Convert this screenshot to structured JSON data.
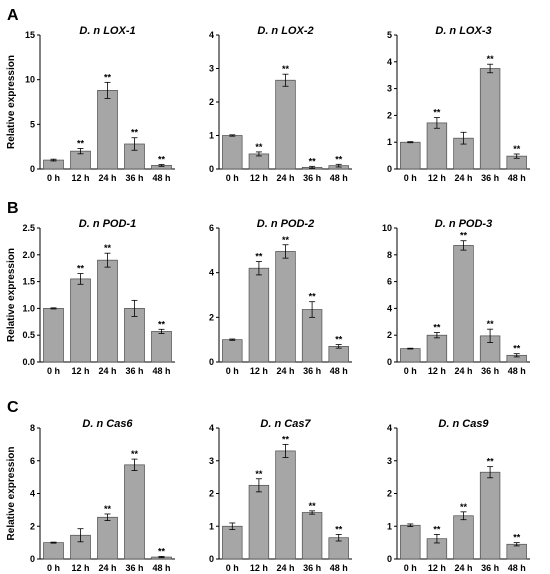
{
  "panels": [
    {
      "letter": "A"
    },
    {
      "letter": "B"
    },
    {
      "letter": "C"
    }
  ],
  "chart_data": [
    {
      "type": "bar",
      "title": "D. n LOX-1",
      "ylabel": "Relative expression",
      "categories": [
        "0 h",
        "12 h",
        "24 h",
        "36 h",
        "48 h"
      ],
      "values": [
        1.0,
        2.0,
        8.8,
        2.8,
        0.4
      ],
      "errors": [
        0.1,
        0.3,
        0.9,
        0.7,
        0.1
      ],
      "significance": [
        "",
        "**",
        "**",
        "**",
        "**"
      ],
      "ylim": [
        0,
        15
      ],
      "yticks": [
        0,
        5,
        10,
        15
      ]
    },
    {
      "type": "bar",
      "title": "D. n LOX-2",
      "ylabel": "",
      "categories": [
        "0 h",
        "12 h",
        "24 h",
        "36 h",
        "48 h"
      ],
      "values": [
        1.0,
        0.45,
        2.65,
        0.05,
        0.1
      ],
      "errors": [
        0.02,
        0.06,
        0.18,
        0.03,
        0.04
      ],
      "significance": [
        "",
        "**",
        "**",
        "**",
        "**"
      ],
      "ylim": [
        0,
        4
      ],
      "yticks": [
        0,
        1,
        2,
        3,
        4
      ]
    },
    {
      "type": "bar",
      "title": "D. n LOX-3",
      "ylabel": "",
      "categories": [
        "0 h",
        "12 h",
        "24 h",
        "36 h",
        "48 h"
      ],
      "values": [
        1.0,
        1.72,
        1.15,
        3.75,
        0.48
      ],
      "errors": [
        0.02,
        0.2,
        0.22,
        0.16,
        0.08
      ],
      "significance": [
        "",
        "**",
        "",
        "**",
        "**"
      ],
      "ylim": [
        0,
        5
      ],
      "yticks": [
        0,
        1,
        2,
        3,
        4,
        5
      ]
    },
    {
      "type": "bar",
      "title": "D. n POD-1",
      "ylabel": "Relative expression",
      "categories": [
        "0 h",
        "12 h",
        "24 h",
        "36 h",
        "48 h"
      ],
      "values": [
        1.0,
        1.55,
        1.9,
        1.0,
        0.57
      ],
      "errors": [
        0.01,
        0.1,
        0.13,
        0.15,
        0.04
      ],
      "significance": [
        "",
        "**",
        "**",
        "",
        "**"
      ],
      "ylim": [
        0,
        2.5
      ],
      "yticks": [
        0,
        0.5,
        1.0,
        1.5,
        2.0,
        2.5
      ]
    },
    {
      "type": "bar",
      "title": "D. n POD-2",
      "ylabel": "",
      "categories": [
        "0 h",
        "12 h",
        "24 h",
        "36 h",
        "48 h"
      ],
      "values": [
        1.0,
        4.2,
        4.95,
        2.35,
        0.7
      ],
      "errors": [
        0.03,
        0.3,
        0.3,
        0.35,
        0.08
      ],
      "significance": [
        "",
        "**",
        "**",
        "**",
        "**"
      ],
      "ylim": [
        0,
        6
      ],
      "yticks": [
        0,
        2,
        4,
        6
      ]
    },
    {
      "type": "bar",
      "title": "D. n POD-3",
      "ylabel": "",
      "categories": [
        "0 h",
        "12 h",
        "24 h",
        "36 h",
        "48 h"
      ],
      "values": [
        1.0,
        2.0,
        8.7,
        1.95,
        0.5
      ],
      "errors": [
        0.03,
        0.2,
        0.35,
        0.5,
        0.12
      ],
      "significance": [
        "",
        "**",
        "**",
        "**",
        "**"
      ],
      "ylim": [
        0,
        10
      ],
      "yticks": [
        0,
        2,
        4,
        6,
        8,
        10
      ]
    },
    {
      "type": "bar",
      "title": "D. n Cas6",
      "ylabel": "Relative expression",
      "categories": [
        "0 h",
        "12 h",
        "24 h",
        "36 h",
        "48 h"
      ],
      "values": [
        1.0,
        1.45,
        2.55,
        5.75,
        0.12
      ],
      "errors": [
        0.03,
        0.4,
        0.2,
        0.35,
        0.04
      ],
      "significance": [
        "",
        "",
        "**",
        "**",
        "**"
      ],
      "ylim": [
        0,
        8
      ],
      "yticks": [
        0,
        2,
        4,
        6,
        8
      ]
    },
    {
      "type": "bar",
      "title": "D. n Cas7",
      "ylabel": "",
      "categories": [
        "0 h",
        "12 h",
        "24 h",
        "36 h",
        "48 h"
      ],
      "values": [
        1.0,
        2.25,
        3.3,
        1.42,
        0.65
      ],
      "errors": [
        0.1,
        0.2,
        0.2,
        0.05,
        0.1
      ],
      "significance": [
        "",
        "**",
        "**",
        "**",
        "**"
      ],
      "ylim": [
        0,
        4
      ],
      "yticks": [
        0,
        1,
        2,
        3,
        4
      ]
    },
    {
      "type": "bar",
      "title": "D. n Cas9",
      "ylabel": "",
      "categories": [
        "0 h",
        "12 h",
        "24 h",
        "36 h",
        "48 h"
      ],
      "values": [
        1.03,
        0.62,
        1.32,
        2.65,
        0.45
      ],
      "errors": [
        0.04,
        0.13,
        0.12,
        0.17,
        0.05
      ],
      "significance": [
        "",
        "**",
        "**",
        "**",
        "**"
      ],
      "ylim": [
        0,
        4
      ],
      "yticks": [
        0,
        1,
        2,
        3,
        4
      ]
    }
  ]
}
